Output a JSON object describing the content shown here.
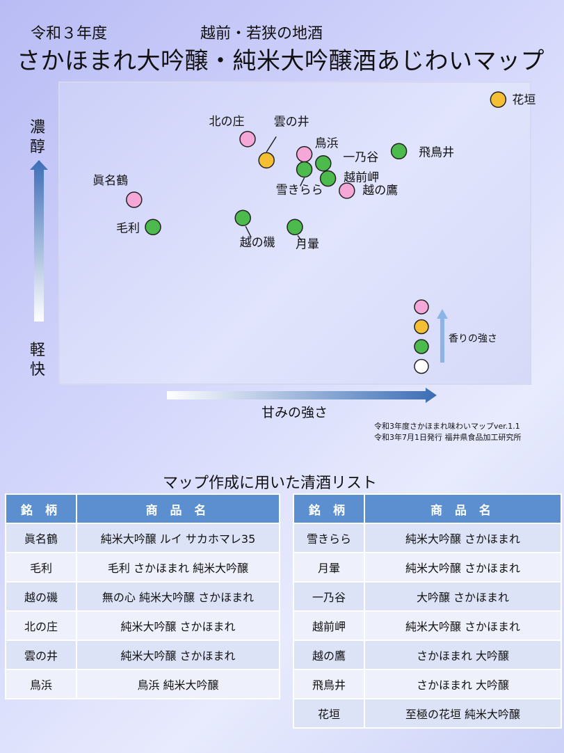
{
  "header": {
    "year": "令和３年度",
    "region": "越前・若狭の地酒",
    "title": "さかほまれ大吟醸・純米大吟醸酒あじわいマップ"
  },
  "axes": {
    "y_high": "濃醇",
    "y_low": "軽快",
    "x_label": "甘みの強さ",
    "aroma_label": "香りの強さ"
  },
  "credits": {
    "line1": "令和3年度さかほまれ味わいマップver.1.1",
    "line2": "令和3年7月1日発行 福井県食品加工研究所"
  },
  "colors": {
    "pink": "#f5a8d8",
    "orange": "#f5bf34",
    "green": "#4cba4c",
    "white": "#ffffff",
    "header_blue": "#5b8fcf"
  },
  "chart_data": {
    "type": "scatter",
    "title": "さかほまれ大吟醸・純米大吟醸酒あじわいマップ",
    "xlabel": "甘みの強さ",
    "ylabel": "濃醇 ↔ 軽快",
    "aroma_legend": [
      "pink",
      "orange",
      "green",
      "white"
    ],
    "points": [
      {
        "name": "花垣",
        "x": 93,
        "y": 94,
        "color": "orange"
      },
      {
        "name": "北の庄",
        "x": 40,
        "y": 81,
        "color": "pink"
      },
      {
        "name": "雲の井",
        "x": 44,
        "y": 74,
        "color": "orange"
      },
      {
        "name": "鳥浜",
        "x": 52,
        "y": 76,
        "color": "pink"
      },
      {
        "name": "飛鳥井",
        "x": 72,
        "y": 77,
        "color": "green"
      },
      {
        "name": "一乃谷",
        "x": 56,
        "y": 73,
        "color": "green"
      },
      {
        "name": "雪きらら",
        "x": 52,
        "y": 71,
        "color": "green"
      },
      {
        "name": "越前岬",
        "x": 57,
        "y": 68,
        "color": "green"
      },
      {
        "name": "越の鷹",
        "x": 61,
        "y": 64,
        "color": "pink"
      },
      {
        "name": "眞名鶴",
        "x": 16,
        "y": 61,
        "color": "pink"
      },
      {
        "name": "毛利",
        "x": 20,
        "y": 52,
        "color": "green"
      },
      {
        "name": "越の磯",
        "x": 39,
        "y": 55,
        "color": "green"
      },
      {
        "name": "月暈",
        "x": 50,
        "y": 52,
        "color": "green"
      }
    ]
  },
  "list": {
    "title": "マップ作成に用いた清酒リスト",
    "header_brand": "銘 柄",
    "header_product": "商 品 名",
    "left": [
      {
        "brand": "眞名鶴",
        "product": "純米大吟醸 ルイ サカホマレ35"
      },
      {
        "brand": "毛利",
        "product": "毛利 さかほまれ 純米大吟醸"
      },
      {
        "brand": "越の磯",
        "product": "無の心 純米大吟醸 さかほまれ"
      },
      {
        "brand": "北の庄",
        "product": "純米大吟醸 さかほまれ"
      },
      {
        "brand": "雲の井",
        "product": "純米大吟醸 さかほまれ"
      },
      {
        "brand": "鳥浜",
        "product": "鳥浜 純米大吟醸"
      }
    ],
    "right": [
      {
        "brand": "雪きらら",
        "product": "純米大吟醸 さかほまれ"
      },
      {
        "brand": "月暈",
        "product": "純米大吟醸 さかほまれ"
      },
      {
        "brand": "一乃谷",
        "product": "大吟醸 さかほまれ"
      },
      {
        "brand": "越前岬",
        "product": "純米大吟醸 さかほまれ"
      },
      {
        "brand": "越の鷹",
        "product": "さかほまれ 大吟醸"
      },
      {
        "brand": "飛鳥井",
        "product": "さかほまれ 大吟醸"
      },
      {
        "brand": "花垣",
        "product": "至極の花垣 純米大吟醸"
      }
    ]
  }
}
